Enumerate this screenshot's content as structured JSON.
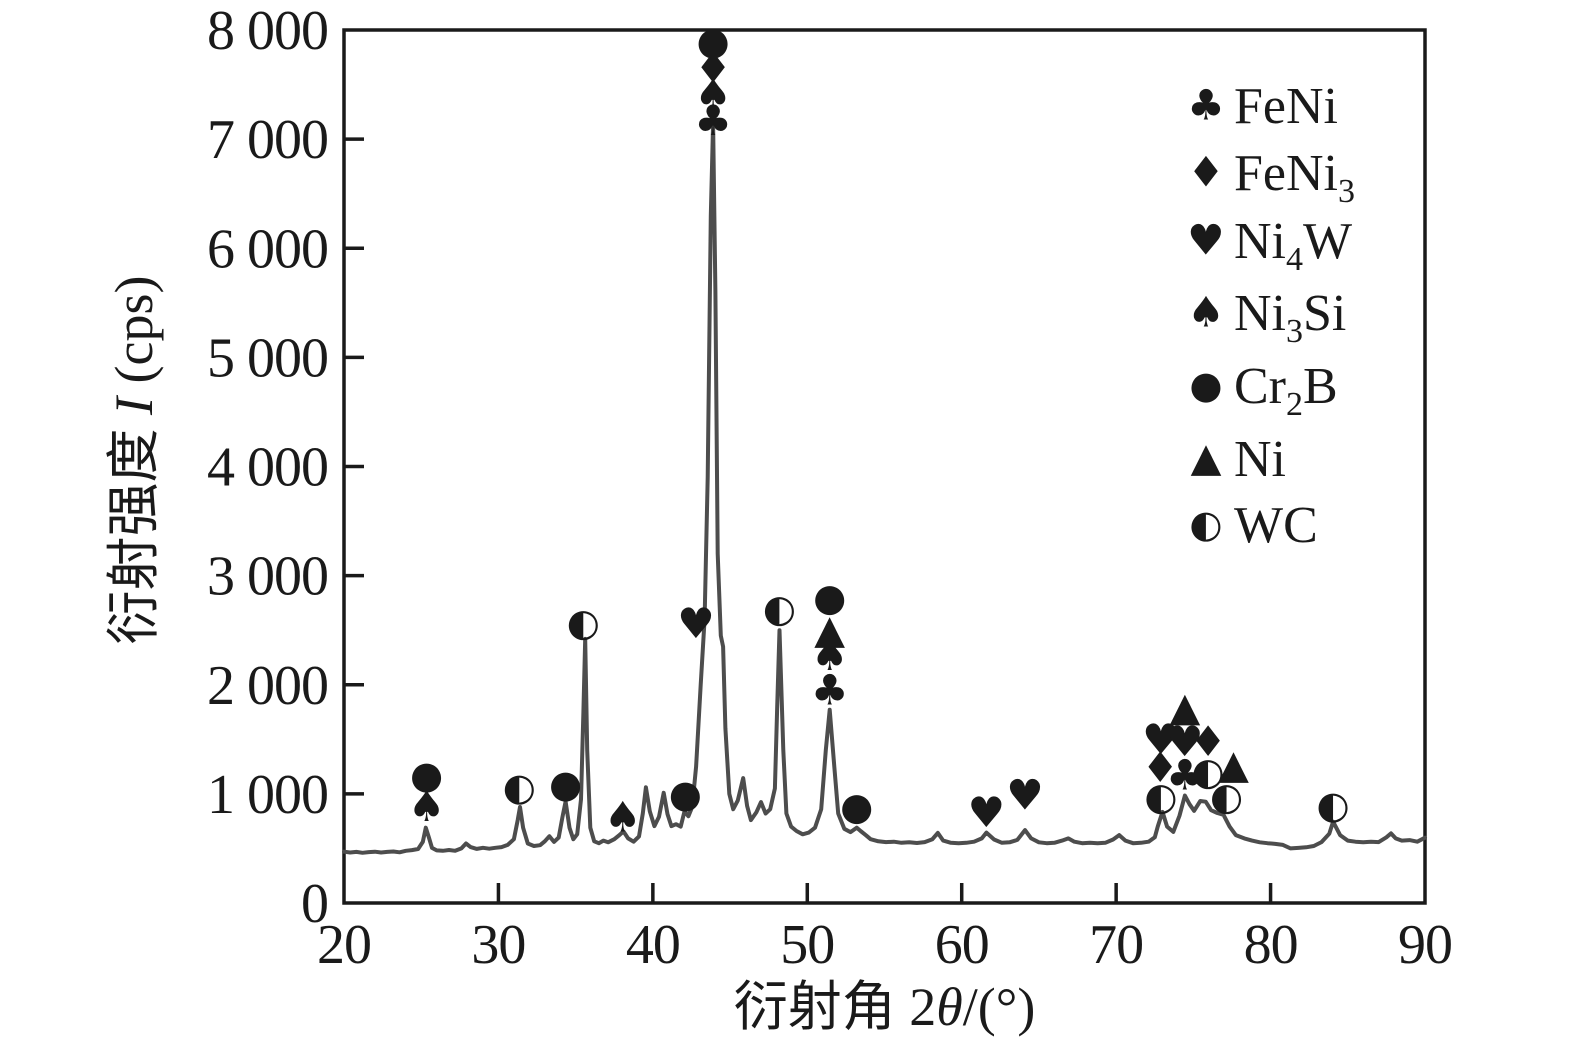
{
  "page": {
    "background": "#ffffff"
  },
  "chart_data": {
    "type": "line",
    "title": "",
    "grid": false,
    "style": {
      "background": "#ffffff",
      "axis_color": "#1a1a1a",
      "line_color": "#4d4d4d",
      "marker_color": "#111111"
    },
    "x_axis": {
      "title": "衍射角 2θ/(°)",
      "title_parts": [
        {
          "t": "衍射角 2"
        },
        {
          "t": "θ",
          "italic": true
        },
        {
          "t": "/(°)"
        }
      ],
      "lim": [
        20,
        90
      ],
      "ticks": [
        20,
        30,
        40,
        50,
        60,
        70,
        80,
        90
      ],
      "tick_labels": [
        "20",
        "30",
        "40",
        "50",
        "60",
        "70",
        "80",
        "90"
      ]
    },
    "y_axis": {
      "title": "衍射强度 I (cps)",
      "title_parts": [
        {
          "t": "衍射强度 "
        },
        {
          "t": "I",
          "italic": true
        },
        {
          "t": " (cps)"
        }
      ],
      "lim": [
        0,
        8000
      ],
      "ticks": [
        0,
        1000,
        2000,
        3000,
        4000,
        5000,
        6000,
        7000,
        8000
      ],
      "tick_labels": [
        "0",
        "1 000",
        "2 000",
        "3 000",
        "4 000",
        "5 000",
        "6 000",
        "7 000",
        "8 000"
      ]
    },
    "legend": {
      "position": "upper-right",
      "items": [
        {
          "symbol": "club",
          "label": "FeNi",
          "label_parts": [
            {
              "t": "FeNi"
            }
          ]
        },
        {
          "symbol": "diamond",
          "label": "FeNi3",
          "label_parts": [
            {
              "t": "FeNi"
            },
            {
              "t": "3",
              "sub": true
            }
          ]
        },
        {
          "symbol": "heart",
          "label": "Ni4W",
          "label_parts": [
            {
              "t": "Ni"
            },
            {
              "t": "4",
              "sub": true
            },
            {
              "t": "W"
            }
          ]
        },
        {
          "symbol": "spade",
          "label": "Ni3Si",
          "label_parts": [
            {
              "t": "Ni"
            },
            {
              "t": "3",
              "sub": true
            },
            {
              "t": "Si"
            }
          ]
        },
        {
          "symbol": "circle",
          "label": "Cr2B",
          "label_parts": [
            {
              "t": "Cr"
            },
            {
              "t": "2",
              "sub": true
            },
            {
              "t": "B"
            }
          ]
        },
        {
          "symbol": "triangle",
          "label": "Ni",
          "label_parts": [
            {
              "t": "Ni"
            }
          ]
        },
        {
          "symbol": "half-circle",
          "label": "WC",
          "label_parts": [
            {
              "t": "WC"
            }
          ]
        }
      ]
    },
    "series": [
      {
        "name": "XRD trace",
        "points": [
          [
            20.0,
            470
          ],
          [
            20.4,
            463
          ],
          [
            20.8,
            468
          ],
          [
            21.2,
            460
          ],
          [
            21.6,
            466
          ],
          [
            22.0,
            470
          ],
          [
            22.4,
            463
          ],
          [
            22.8,
            468
          ],
          [
            23.2,
            472
          ],
          [
            23.6,
            465
          ],
          [
            24.0,
            478
          ],
          [
            24.4,
            485
          ],
          [
            24.8,
            495
          ],
          [
            25.1,
            560
          ],
          [
            25.3,
            690
          ],
          [
            25.5,
            600
          ],
          [
            25.7,
            505
          ],
          [
            26.0,
            482
          ],
          [
            26.4,
            478
          ],
          [
            26.8,
            486
          ],
          [
            27.2,
            478
          ],
          [
            27.6,
            500
          ],
          [
            27.9,
            545
          ],
          [
            28.2,
            512
          ],
          [
            28.6,
            496
          ],
          [
            29.0,
            506
          ],
          [
            29.4,
            498
          ],
          [
            29.8,
            506
          ],
          [
            30.2,
            512
          ],
          [
            30.6,
            532
          ],
          [
            31.0,
            585
          ],
          [
            31.25,
            760
          ],
          [
            31.4,
            880
          ],
          [
            31.6,
            690
          ],
          [
            31.9,
            545
          ],
          [
            32.3,
            522
          ],
          [
            32.7,
            530
          ],
          [
            33.0,
            565
          ],
          [
            33.3,
            612
          ],
          [
            33.6,
            560
          ],
          [
            33.9,
            600
          ],
          [
            34.15,
            790
          ],
          [
            34.35,
            930
          ],
          [
            34.6,
            690
          ],
          [
            34.85,
            585
          ],
          [
            35.1,
            630
          ],
          [
            35.35,
            950
          ],
          [
            35.5,
            1750
          ],
          [
            35.62,
            2420
          ],
          [
            35.75,
            1400
          ],
          [
            35.95,
            690
          ],
          [
            36.2,
            565
          ],
          [
            36.5,
            548
          ],
          [
            36.8,
            572
          ],
          [
            37.1,
            556
          ],
          [
            37.5,
            585
          ],
          [
            37.85,
            625
          ],
          [
            38.1,
            655
          ],
          [
            38.4,
            592
          ],
          [
            38.75,
            562
          ],
          [
            39.1,
            610
          ],
          [
            39.35,
            820
          ],
          [
            39.55,
            1060
          ],
          [
            39.8,
            840
          ],
          [
            40.1,
            705
          ],
          [
            40.4,
            790
          ],
          [
            40.7,
            1010
          ],
          [
            40.95,
            815
          ],
          [
            41.2,
            705
          ],
          [
            41.5,
            722
          ],
          [
            41.8,
            700
          ],
          [
            42.05,
            840
          ],
          [
            42.3,
            795
          ],
          [
            42.55,
            880
          ],
          [
            42.8,
            1250
          ],
          [
            43.1,
            2000
          ],
          [
            43.35,
            2600
          ],
          [
            43.55,
            3900
          ],
          [
            43.75,
            6300
          ],
          [
            43.9,
            7150
          ],
          [
            44.05,
            5600
          ],
          [
            44.2,
            3200
          ],
          [
            44.4,
            2450
          ],
          [
            44.55,
            2350
          ],
          [
            44.7,
            1600
          ],
          [
            44.95,
            1000
          ],
          [
            45.2,
            860
          ],
          [
            45.5,
            940
          ],
          [
            45.85,
            1145
          ],
          [
            46.1,
            890
          ],
          [
            46.35,
            760
          ],
          [
            46.7,
            830
          ],
          [
            47.0,
            925
          ],
          [
            47.3,
            820
          ],
          [
            47.6,
            860
          ],
          [
            47.9,
            1050
          ],
          [
            48.05,
            1800
          ],
          [
            48.2,
            2500
          ],
          [
            48.45,
            1400
          ],
          [
            48.65,
            820
          ],
          [
            48.95,
            700
          ],
          [
            49.3,
            660
          ],
          [
            49.7,
            630
          ],
          [
            50.1,
            645
          ],
          [
            50.5,
            690
          ],
          [
            50.9,
            860
          ],
          [
            51.2,
            1400
          ],
          [
            51.45,
            1770
          ],
          [
            51.75,
            1250
          ],
          [
            52.0,
            820
          ],
          [
            52.4,
            680
          ],
          [
            52.8,
            650
          ],
          [
            53.2,
            690
          ],
          [
            53.45,
            660
          ],
          [
            53.8,
            620
          ],
          [
            54.1,
            585
          ],
          [
            54.6,
            565
          ],
          [
            55.1,
            558
          ],
          [
            55.6,
            562
          ],
          [
            56.1,
            552
          ],
          [
            56.6,
            556
          ],
          [
            57.1,
            550
          ],
          [
            57.6,
            558
          ],
          [
            58.1,
            585
          ],
          [
            58.45,
            642
          ],
          [
            58.8,
            572
          ],
          [
            59.3,
            552
          ],
          [
            59.8,
            548
          ],
          [
            60.3,
            552
          ],
          [
            60.8,
            562
          ],
          [
            61.3,
            592
          ],
          [
            61.6,
            645
          ],
          [
            62.1,
            582
          ],
          [
            62.6,
            552
          ],
          [
            63.1,
            556
          ],
          [
            63.6,
            578
          ],
          [
            64.1,
            668
          ],
          [
            64.5,
            592
          ],
          [
            65.0,
            556
          ],
          [
            65.5,
            548
          ],
          [
            66.0,
            552
          ],
          [
            66.5,
            572
          ],
          [
            66.9,
            592
          ],
          [
            67.3,
            562
          ],
          [
            67.8,
            548
          ],
          [
            68.3,
            552
          ],
          [
            68.8,
            548
          ],
          [
            69.3,
            552
          ],
          [
            69.8,
            582
          ],
          [
            70.2,
            622
          ],
          [
            70.6,
            572
          ],
          [
            71.1,
            548
          ],
          [
            71.6,
            552
          ],
          [
            72.1,
            562
          ],
          [
            72.5,
            602
          ],
          [
            72.7,
            702
          ],
          [
            73.0,
            835
          ],
          [
            73.3,
            700
          ],
          [
            73.7,
            652
          ],
          [
            74.1,
            800
          ],
          [
            74.45,
            985
          ],
          [
            74.75,
            905
          ],
          [
            75.05,
            845
          ],
          [
            75.45,
            935
          ],
          [
            75.8,
            928
          ],
          [
            76.15,
            850
          ],
          [
            76.55,
            825
          ],
          [
            76.95,
            808
          ],
          [
            77.35,
            700
          ],
          [
            77.75,
            622
          ],
          [
            78.3,
            592
          ],
          [
            78.8,
            572
          ],
          [
            79.3,
            556
          ],
          [
            79.8,
            548
          ],
          [
            80.3,
            542
          ],
          [
            80.8,
            532
          ],
          [
            81.3,
            500
          ],
          [
            81.8,
            505
          ],
          [
            82.3,
            510
          ],
          [
            82.8,
            522
          ],
          [
            83.3,
            558
          ],
          [
            83.8,
            635
          ],
          [
            84.05,
            745
          ],
          [
            84.5,
            622
          ],
          [
            85.0,
            572
          ],
          [
            85.5,
            562
          ],
          [
            86.0,
            556
          ],
          [
            86.5,
            562
          ],
          [
            87.0,
            558
          ],
          [
            87.5,
            602
          ],
          [
            87.8,
            638
          ],
          [
            88.1,
            592
          ],
          [
            88.5,
            572
          ],
          [
            89.0,
            576
          ],
          [
            89.5,
            562
          ],
          [
            90.0,
            598
          ]
        ]
      }
    ],
    "phase_markers": [
      {
        "phase": "FeNi",
        "symbol": "club",
        "points": [
          [
            43.9,
            7170
          ],
          [
            51.45,
            1950
          ],
          [
            74.45,
            1175
          ]
        ]
      },
      {
        "phase": "FeNi3",
        "symbol": "diamond",
        "points": [
          [
            43.9,
            7650
          ],
          [
            72.85,
            1240
          ],
          [
            75.95,
            1480
          ]
        ]
      },
      {
        "phase": "Ni4W",
        "symbol": "heart",
        "points": [
          [
            42.8,
            2560
          ],
          [
            61.6,
            830
          ],
          [
            64.1,
            990
          ],
          [
            72.9,
            1500
          ],
          [
            74.45,
            1480
          ]
        ]
      },
      {
        "phase": "Ni3Si",
        "symbol": "spade",
        "points": [
          [
            25.35,
            885
          ],
          [
            38.05,
            790
          ],
          [
            43.9,
            7410
          ],
          [
            51.45,
            2270
          ]
        ]
      },
      {
        "phase": "Cr2B",
        "symbol": "circle",
        "points": [
          [
            25.35,
            1175
          ],
          [
            34.35,
            1090
          ],
          [
            42.1,
            1000
          ],
          [
            43.9,
            7900
          ],
          [
            51.45,
            2800
          ],
          [
            53.2,
            885
          ]
        ]
      },
      {
        "phase": "Ni",
        "symbol": "triangle",
        "points": [
          [
            51.45,
            2500
          ],
          [
            74.45,
            1790
          ],
          [
            77.6,
            1265
          ]
        ]
      },
      {
        "phase": "WC",
        "symbol": "half-circle",
        "points": [
          [
            31.35,
            1065
          ],
          [
            35.5,
            2570
          ],
          [
            48.2,
            2700
          ],
          [
            72.9,
            975
          ],
          [
            75.95,
            1205
          ],
          [
            77.15,
            975
          ],
          [
            84.05,
            900
          ]
        ]
      }
    ]
  }
}
